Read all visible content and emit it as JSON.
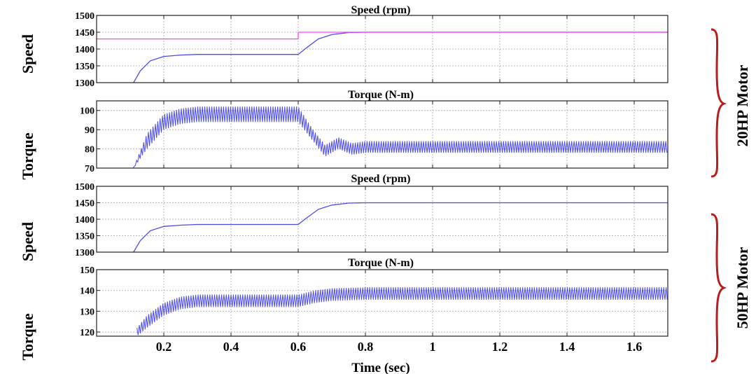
{
  "figure": {
    "x_axis_label": "Time (sec)",
    "x_ticks": [
      0.2,
      0.4,
      0.6,
      0.8,
      1,
      1.2,
      1.4,
      1.6
    ],
    "x_tick_labels": [
      "0.2",
      "0.4",
      "0.6",
      "0.8",
      "1",
      "1.2",
      "1.4",
      "1.6"
    ],
    "groups": [
      {
        "label": "20HP Motor"
      },
      {
        "label": "50HP Motor"
      }
    ],
    "row_labels": [
      "Speed",
      "Torque",
      "Speed",
      "Torque"
    ]
  },
  "colors": {
    "series_blue": "#4a4af0",
    "reference_magenta": "#ff40ff",
    "brace_red": "#b81e1e",
    "grid": "#b8b8b8"
  },
  "chart_data": [
    {
      "type": "line",
      "title": "Speed (rpm)",
      "ylabel": "Speed",
      "xlim": [
        0,
        1.7
      ],
      "ylim": [
        1300,
        1500
      ],
      "y_ticks": [
        1300,
        1350,
        1400,
        1450,
        1500
      ],
      "series": [
        {
          "color": "#4a4af0",
          "x": [
            0.11,
            0.13,
            0.16,
            0.2,
            0.25,
            0.3,
            0.4,
            0.5,
            0.6,
            0.62,
            0.66,
            0.7,
            0.75,
            0.8,
            1.0,
            1.7
          ],
          "y": [
            1300,
            1335,
            1365,
            1378,
            1382,
            1384,
            1384,
            1384,
            1384,
            1400,
            1430,
            1443,
            1449,
            1450,
            1450,
            1450
          ]
        },
        {
          "color": "#ff40ff",
          "x": [
            0,
            0.6,
            0.6,
            1.7
          ],
          "y": [
            1430,
            1430,
            1450,
            1450
          ]
        }
      ]
    },
    {
      "type": "line",
      "title": "Torque (N-m)",
      "ylabel": "Torque",
      "xlim": [
        0,
        1.7
      ],
      "ylim": [
        70,
        105
      ],
      "y_ticks": [
        70,
        80,
        90,
        100
      ],
      "series": [
        {
          "color": "#4a4af0",
          "x": [
            0,
            0.11,
            0.15,
            0.2,
            0.25,
            0.3,
            0.4,
            0.5,
            0.6,
            0.64,
            0.68,
            0.72,
            0.76,
            0.8,
            1.0,
            1.7
          ],
          "y": [
            70,
            70,
            84,
            94,
            97,
            98,
            98,
            98,
            98,
            88,
            79,
            83,
            80,
            81,
            81,
            81
          ],
          "ripple": [
            0,
            0,
            4,
            4,
            4,
            4,
            4,
            4,
            4,
            3,
            3,
            3,
            3,
            3,
            3,
            3
          ]
        }
      ]
    },
    {
      "type": "line",
      "title": "Speed (rpm)",
      "ylabel": "Speed",
      "xlim": [
        0,
        1.7
      ],
      "ylim": [
        1300,
        1500
      ],
      "y_ticks": [
        1300,
        1350,
        1400,
        1450,
        1500
      ],
      "series": [
        {
          "color": "#4a4af0",
          "x": [
            0.11,
            0.13,
            0.16,
            0.2,
            0.25,
            0.3,
            0.4,
            0.5,
            0.6,
            0.62,
            0.66,
            0.7,
            0.75,
            0.8,
            1.0,
            1.7
          ],
          "y": [
            1300,
            1335,
            1365,
            1378,
            1382,
            1384,
            1384,
            1384,
            1384,
            1400,
            1430,
            1443,
            1449,
            1450,
            1450,
            1450
          ]
        }
      ]
    },
    {
      "type": "line",
      "title": "Torque (N-m)",
      "ylabel": "Torque",
      "xlim": [
        0,
        1.7
      ],
      "ylim": [
        118,
        150
      ],
      "y_ticks": [
        120,
        130,
        140,
        150
      ],
      "series": [
        {
          "color": "#4a4af0",
          "x": [
            0.12,
            0.15,
            0.2,
            0.25,
            0.3,
            0.4,
            0.5,
            0.6,
            0.65,
            0.7,
            0.8,
            1.0,
            1.7
          ],
          "y": [
            120,
            125,
            131,
            134,
            135,
            135,
            135,
            135,
            137,
            138,
            138.5,
            138.5,
            138.5
          ],
          "ripple": [
            2,
            3,
            3,
            3,
            3,
            3,
            3,
            3,
            3,
            3,
            3,
            3,
            3
          ]
        }
      ]
    }
  ]
}
